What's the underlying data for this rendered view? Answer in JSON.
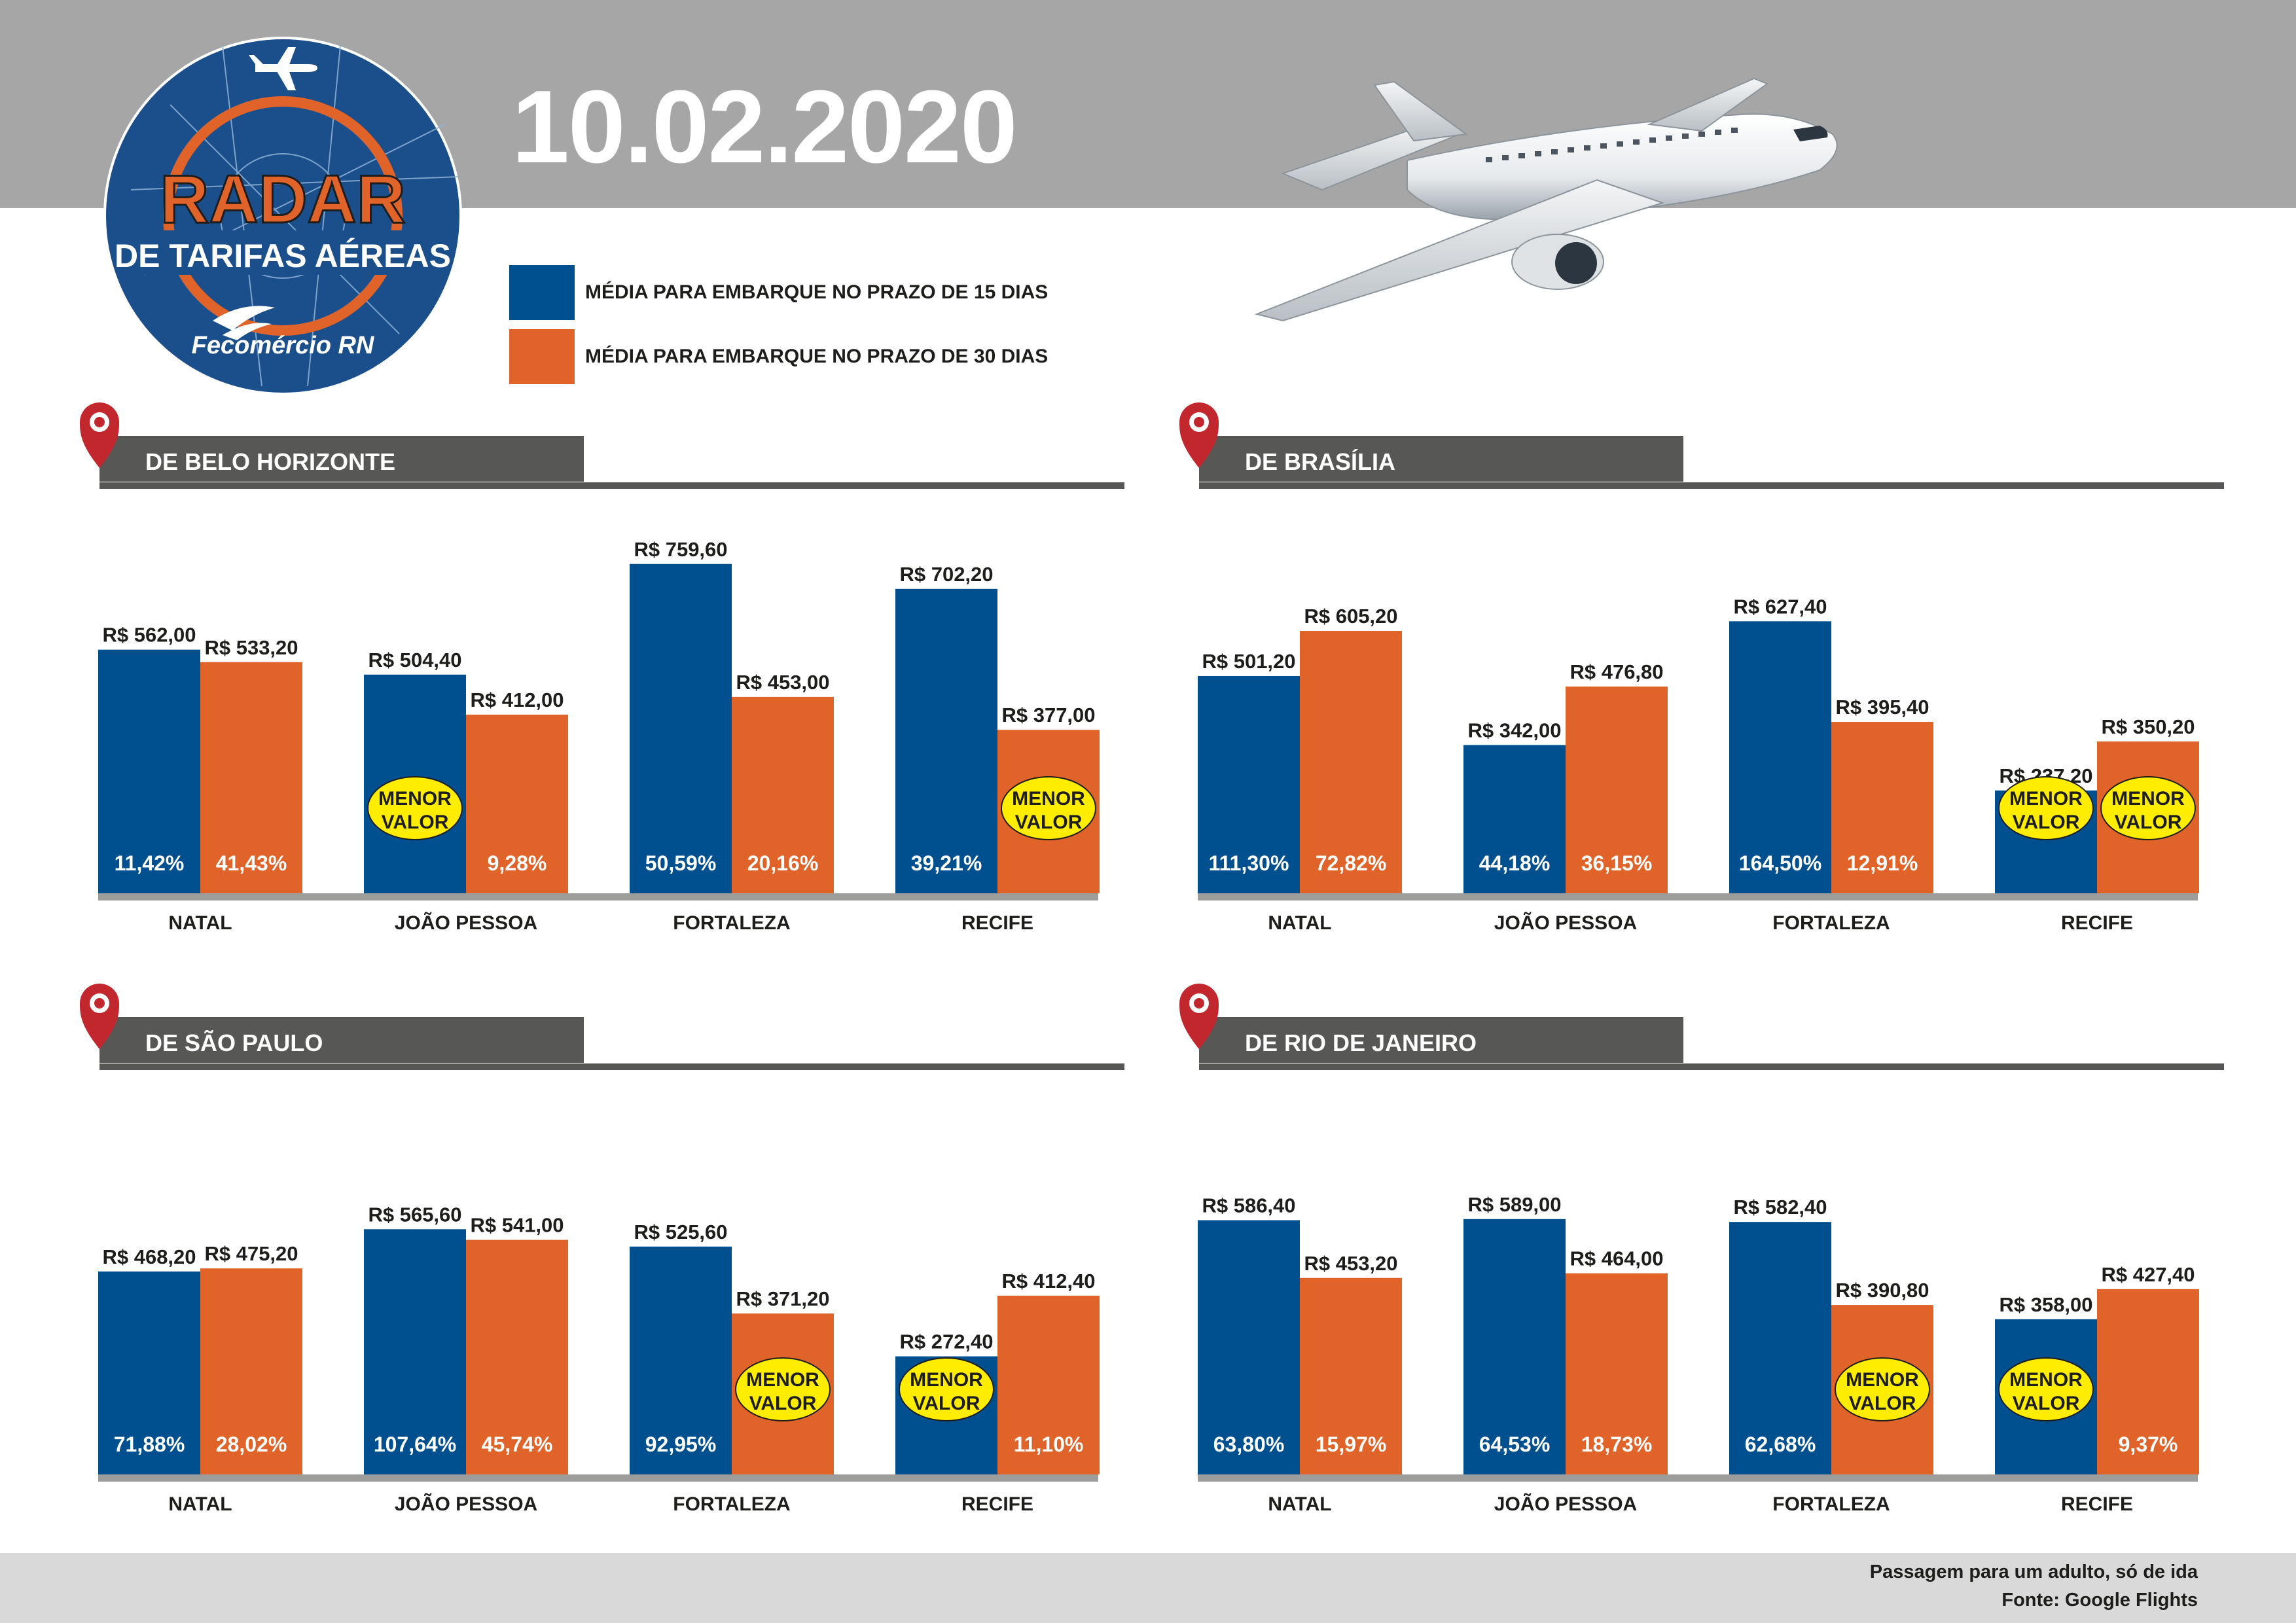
{
  "header": {
    "date": "10.02.2020",
    "logo": {
      "title": "RADAR",
      "subtitle": "DE TARIFAS AÉREAS",
      "brand": "Fecomércio RN",
      "icon": "airplane-icon"
    }
  },
  "legend": [
    {
      "label": "MÉDIA PARA EMBARQUE NO PRAZO DE 15 DIAS",
      "color": "#004f8f"
    },
    {
      "label": "MÉDIA PARA EMBARQUE NO PRAZO DE 30 DIAS",
      "color": "#e0632a"
    }
  ],
  "chart_data": [
    {
      "type": "bar",
      "title": "DE BELO HORIZONTE",
      "categories": [
        "NATAL",
        "JOÃO PESSOA",
        "FORTALEZA",
        "RECIFE"
      ],
      "series": [
        {
          "name": "MÉDIA PARA EMBARQUE NO PRAZO DE 15 DIAS",
          "color": "#004f8f",
          "values": [
            562.0,
            504.4,
            759.6,
            702.2
          ],
          "labels": [
            "R$ 562,00",
            "R$ 504,40",
            "R$ 759,60",
            "R$ 702,20"
          ],
          "percents": [
            "11,42%",
            "",
            "50,59%",
            "39,21%"
          ]
        },
        {
          "name": "MÉDIA PARA EMBARQUE NO PRAZO DE 30 DIAS",
          "color": "#e0632a",
          "values": [
            533.2,
            412.0,
            453.0,
            377.0
          ],
          "labels": [
            "R$ 533,20",
            "R$ 412,00",
            "R$ 453,00",
            "R$ 377,00"
          ],
          "percents": [
            "41,43%",
            "9,28%",
            "20,16%",
            ""
          ]
        }
      ],
      "badges": [
        {
          "category": 1,
          "series": 0,
          "text": [
            "MENOR",
            "VALOR"
          ]
        },
        {
          "category": 3,
          "series": 1,
          "text": [
            "MENOR",
            "VALOR"
          ]
        }
      ],
      "ylim": [
        0,
        800
      ]
    },
    {
      "type": "bar",
      "title": "DE BRASÍLIA",
      "categories": [
        "NATAL",
        "JOÃO PESSOA",
        "FORTALEZA",
        "RECIFE"
      ],
      "series": [
        {
          "name": "MÉDIA PARA EMBARQUE NO PRAZO DE 15 DIAS",
          "color": "#004f8f",
          "values": [
            501.2,
            342.0,
            627.4,
            237.2
          ],
          "labels": [
            "R$ 501,20",
            "R$ 342,00",
            "R$ 627,40",
            "R$ 237,20"
          ],
          "percents": [
            "111,30%",
            "44,18%",
            "164,50%",
            ""
          ]
        },
        {
          "name": "MÉDIA PARA EMBARQUE NO PRAZO DE 30 DIAS",
          "color": "#e0632a",
          "values": [
            605.2,
            476.8,
            395.4,
            350.2
          ],
          "labels": [
            "R$ 605,20",
            "R$ 476,80",
            "R$ 395,40",
            "R$ 350,20"
          ],
          "percents": [
            "72,82%",
            "36,15%",
            "12,91%",
            ""
          ]
        }
      ],
      "badges": [
        {
          "category": 3,
          "series": 0,
          "text": [
            "MENOR",
            "VALOR"
          ]
        },
        {
          "category": 3,
          "series": 1,
          "text": [
            "MENOR",
            "VALOR"
          ]
        }
      ],
      "ylim": [
        0,
        800
      ]
    },
    {
      "type": "bar",
      "title": "DE SÃO PAULO",
      "categories": [
        "NATAL",
        "JOÃO PESSOA",
        "FORTALEZA",
        "RECIFE"
      ],
      "series": [
        {
          "name": "MÉDIA PARA EMBARQUE NO PRAZO DE 15 DIAS",
          "color": "#004f8f",
          "values": [
            468.2,
            565.6,
            525.6,
            272.4
          ],
          "labels": [
            "R$ 468,20",
            "R$ 565,60",
            "R$ 525,60",
            "R$ 272,40"
          ],
          "percents": [
            "71,88%",
            "107,64%",
            "92,95%",
            ""
          ]
        },
        {
          "name": "MÉDIA PARA EMBARQUE NO PRAZO DE 30 DIAS",
          "color": "#e0632a",
          "values": [
            475.2,
            541.0,
            371.2,
            412.4
          ],
          "labels": [
            "R$ 475,20",
            "R$ 541,00",
            "R$ 371,20",
            "R$ 412,40"
          ],
          "percents": [
            "28,02%",
            "45,74%",
            "",
            "11,10%"
          ]
        }
      ],
      "badges": [
        {
          "category": 2,
          "series": 1,
          "text": [
            "MENOR",
            "VALOR"
          ]
        },
        {
          "category": 3,
          "series": 0,
          "text": [
            "MENOR",
            "VALOR"
          ]
        }
      ],
      "ylim": [
        0,
        800
      ]
    },
    {
      "type": "bar",
      "title": "DE RIO DE JANEIRO",
      "categories": [
        "NATAL",
        "JOÃO PESSOA",
        "FORTALEZA",
        "RECIFE"
      ],
      "series": [
        {
          "name": "MÉDIA PARA EMBARQUE NO PRAZO DE 15 DIAS",
          "color": "#004f8f",
          "values": [
            586.4,
            589.0,
            582.4,
            358.0
          ],
          "labels": [
            "R$ 586,40",
            "R$ 589,00",
            "R$ 582,40",
            "R$ 358,00"
          ],
          "percents": [
            "63,80%",
            "64,53%",
            "62,68%",
            ""
          ]
        },
        {
          "name": "MÉDIA PARA EMBARQUE NO PRAZO DE 30 DIAS",
          "color": "#e0632a",
          "values": [
            453.2,
            464.0,
            390.8,
            427.4
          ],
          "labels": [
            "R$ 453,20",
            "R$ 464,00",
            "R$ 390,80",
            "R$ 427,40"
          ],
          "percents": [
            "15,97%",
            "18,73%",
            "",
            "9,37%"
          ]
        }
      ],
      "badges": [
        {
          "category": 2,
          "series": 1,
          "text": [
            "MENOR",
            "VALOR"
          ]
        },
        {
          "category": 3,
          "series": 0,
          "text": [
            "MENOR",
            "VALOR"
          ]
        }
      ],
      "ylim": [
        0,
        800
      ]
    }
  ],
  "footer": {
    "note": "Passagem para um adulto, só de ida",
    "source": "Fonte: Google Flights"
  }
}
